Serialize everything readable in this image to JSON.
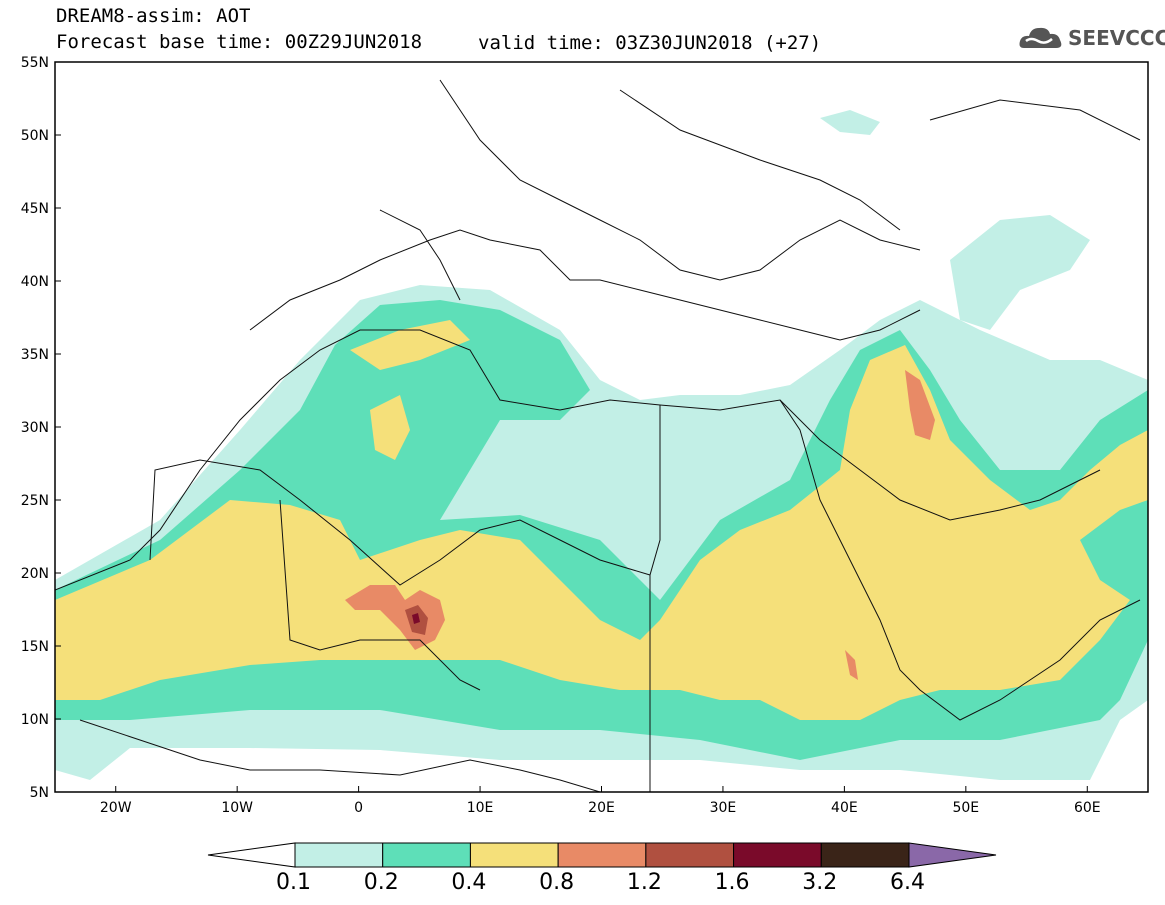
{
  "header": {
    "model_title": "DREAM8-assim: AOT",
    "base_time": "Forecast base time: 00Z29JUN2018",
    "valid_time": "valid time: 03Z30JUN2018 (+27)",
    "logo_text": "SEEVCCC"
  },
  "map": {
    "lon_range": [
      -25,
      65
    ],
    "lat_range": [
      5,
      55
    ],
    "lat_labels": [
      "55N",
      "50N",
      "45N",
      "40N",
      "35N",
      "30N",
      "25N",
      "20N",
      "15N",
      "10N",
      "5N"
    ],
    "lon_labels": [
      "20W",
      "10W",
      "0",
      "10E",
      "20E",
      "30E",
      "40E",
      "50E",
      "60E"
    ]
  },
  "colorbar": {
    "labels": [
      "0.1",
      "0.2",
      "0.4",
      "0.8",
      "1.2",
      "1.6",
      "3.2",
      "6.4"
    ],
    "colors": [
      "#ffffff",
      "#c2efe6",
      "#5edfb8",
      "#f5e07a",
      "#e88a66",
      "#b05040",
      "#7a0a2a",
      "#3a2418",
      "#8a68a8"
    ]
  },
  "legend_colors": {
    "c02": "#c2efe6",
    "c04": "#5edfb8",
    "c08": "#f5e07a",
    "c12": "#e88a66",
    "c16": "#b05040",
    "c32": "#7a0a2a"
  }
}
